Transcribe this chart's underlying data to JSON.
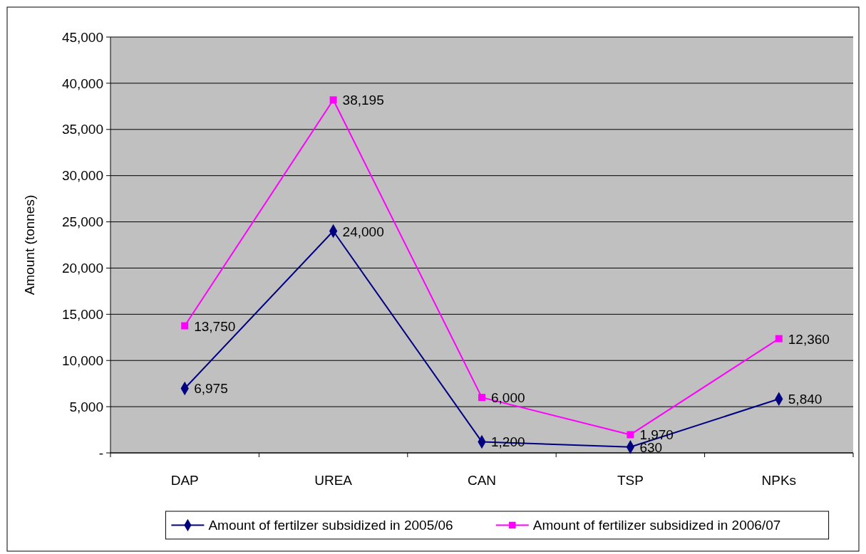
{
  "chart_data": {
    "type": "line",
    "ylabel": "Amount (tonnes)",
    "categories": [
      "DAP",
      "UREA",
      "CAN",
      "TSP",
      "NPKs"
    ],
    "series": [
      {
        "name": "Amount of fertilzer subsidized in 2005/06",
        "color": "#000080",
        "marker": "diamond",
        "values": [
          6975,
          24000,
          1200,
          630,
          5840
        ],
        "value_labels": [
          "6,975",
          "24,000",
          "1,200",
          "630",
          "5,840"
        ]
      },
      {
        "name": "Amount of fertilizer subsidized in 2006/07",
        "color": "#ff00ff",
        "marker": "square",
        "values": [
          13750,
          38195,
          6000,
          1970,
          12360
        ],
        "value_labels": [
          "13,750",
          "38,195",
          "6,000",
          "1,970",
          "12,360"
        ]
      }
    ],
    "ylim": [
      0,
      45000
    ],
    "yticks": [
      {
        "value": 0,
        "label": "-"
      },
      {
        "value": 5000,
        "label": "5,000"
      },
      {
        "value": 10000,
        "label": "10,000"
      },
      {
        "value": 15000,
        "label": "15,000"
      },
      {
        "value": 20000,
        "label": "20,000"
      },
      {
        "value": 25000,
        "label": "25,000"
      },
      {
        "value": 30000,
        "label": "30,000"
      },
      {
        "value": 35000,
        "label": "35,000"
      },
      {
        "value": 40000,
        "label": "40,000"
      },
      {
        "value": 45000,
        "label": "45,000"
      }
    ],
    "grid": "y",
    "legend": "bottom",
    "line_style": "solid"
  }
}
